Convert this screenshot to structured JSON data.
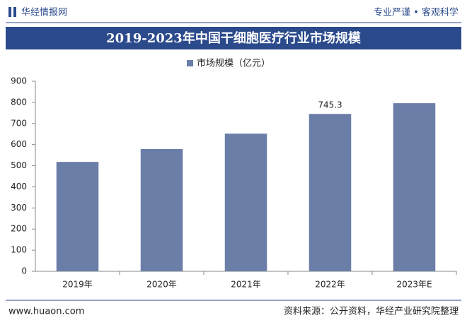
{
  "header": {
    "logo": "华经情报网",
    "slogan": "专业严谨 • 客观科学"
  },
  "footer": {
    "website": "www.huaon.com",
    "source": "资料来源：公开资料，华经产业研究院整理"
  },
  "chart_data": {
    "type": "bar",
    "title": "2019-2023年中国干细胞医疗行业市场规模",
    "categories": [
      "2019年",
      "2020年",
      "2021年",
      "2022年",
      "2023年E"
    ],
    "series": [
      {
        "name": "市场规模（亿元）",
        "color": "#6a7ea8",
        "values": [
          518,
          579,
          652,
          745.3,
          796
        ]
      }
    ],
    "data_labels": [
      false,
      false,
      false,
      true,
      false
    ],
    "ylim": [
      0,
      900
    ],
    "yticks": [
      0,
      100,
      200,
      300,
      400,
      500,
      600,
      700,
      800,
      900
    ],
    "grid": false
  }
}
